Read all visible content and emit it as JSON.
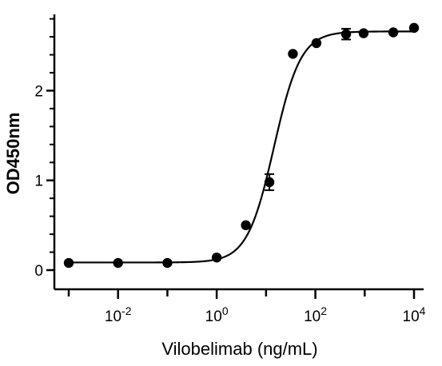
{
  "chart_data": {
    "type": "scatter",
    "title": "",
    "xlabel": "Vilobelimab (ng/mL)",
    "ylabel": "OD450nm",
    "x_scale": "log10",
    "xlim": [
      0.001,
      10000
    ],
    "ylim": [
      0,
      2.85
    ],
    "x_ticks": [
      {
        "value": 0.01,
        "base": "10",
        "exp": "-2"
      },
      {
        "value": 1,
        "base": "10",
        "exp": "0"
      },
      {
        "value": 100,
        "base": "10",
        "exp": "2"
      },
      {
        "value": 10000,
        "base": "10",
        "exp": "4"
      }
    ],
    "y_ticks": [
      {
        "value": 0,
        "label": "0"
      },
      {
        "value": 1,
        "label": "1"
      },
      {
        "value": 2,
        "label": "2"
      }
    ],
    "grid": false,
    "legend": "none",
    "points": [
      {
        "x": 0.001,
        "y": 0.08
      },
      {
        "x": 0.01,
        "y": 0.08
      },
      {
        "x": 0.1,
        "y": 0.08
      },
      {
        "x": 1,
        "y": 0.14
      },
      {
        "x": 3.9,
        "y": 0.5
      },
      {
        "x": 11.7,
        "y": 0.98,
        "err": 0.09
      },
      {
        "x": 35,
        "y": 2.41
      },
      {
        "x": 105,
        "y": 2.53
      },
      {
        "x": 420,
        "y": 2.63,
        "err": 0.06
      },
      {
        "x": 950,
        "y": 2.64
      },
      {
        "x": 3800,
        "y": 2.65
      },
      {
        "x": 10000,
        "y": 2.7
      }
    ],
    "fit": {
      "model": "4PL",
      "bottom": 0.085,
      "top": 2.66,
      "ec50": 14.5,
      "hill": 1.6
    },
    "color": "#000000"
  }
}
